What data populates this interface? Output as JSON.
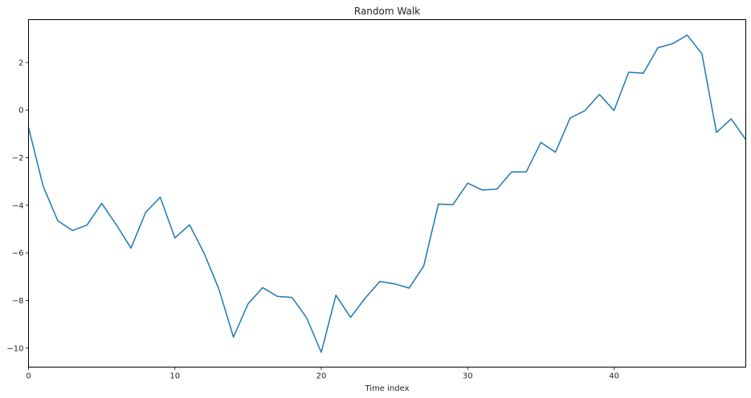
{
  "chart_data": {
    "type": "line",
    "title": "Random Walk",
    "xlabel": "Time index",
    "ylabel": "",
    "xlim": [
      0,
      49
    ],
    "ylim": [
      -10.8,
      3.8
    ],
    "xticks": [
      0,
      10,
      20,
      30,
      40
    ],
    "yticks": [
      -10,
      -8,
      -6,
      -4,
      -2,
      0,
      2
    ],
    "ytick_labels": [
      "−10",
      "−8",
      "−6",
      "−4",
      "−2",
      "0",
      "2"
    ],
    "grid": false,
    "legend": false,
    "series": [
      {
        "color": "#1f77b4",
        "x": [
          0,
          1,
          2,
          3,
          4,
          5,
          6,
          7,
          8,
          9,
          10,
          11,
          12,
          13,
          14,
          15,
          16,
          17,
          18,
          19,
          20,
          21,
          22,
          23,
          24,
          25,
          26,
          27,
          28,
          29,
          30,
          31,
          32,
          33,
          34,
          35,
          36,
          37,
          38,
          39,
          40,
          41,
          42,
          43,
          44,
          45,
          46,
          47,
          48,
          49
        ],
        "values": [
          -0.72,
          -3.2,
          -4.65,
          -5.06,
          -4.83,
          -3.92,
          -4.82,
          -5.8,
          -4.3,
          -3.66,
          -5.37,
          -4.82,
          -6.02,
          -7.51,
          -9.54,
          -8.14,
          -7.46,
          -7.83,
          -7.87,
          -8.73,
          -10.18,
          -7.78,
          -8.71,
          -7.9,
          -7.2,
          -7.3,
          -7.48,
          -6.55,
          -3.95,
          -3.97,
          -3.07,
          -3.36,
          -3.32,
          -2.6,
          -2.6,
          -1.36,
          -1.77,
          -0.33,
          -0.03,
          0.66,
          -0.02,
          1.59,
          1.55,
          2.62,
          2.79,
          3.15,
          2.37,
          -0.94,
          -0.37,
          -1.24
        ]
      }
    ]
  }
}
